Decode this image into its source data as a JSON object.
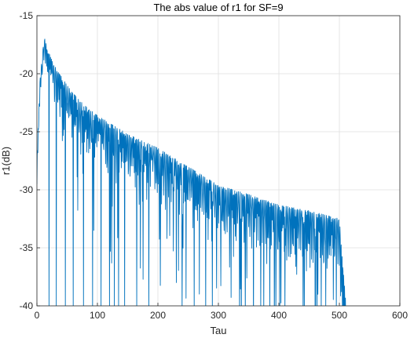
{
  "chart_data": {
    "type": "line",
    "title": "The abs value of r1 for SF=9",
    "xlabel": "Tau",
    "ylabel": "r1(dB)",
    "xlim": [
      0,
      600
    ],
    "ylim": [
      -40,
      -15
    ],
    "xticks": [
      0,
      100,
      200,
      300,
      400,
      500,
      600
    ],
    "yticks": [
      -15,
      -20,
      -25,
      -30,
      -35,
      -40
    ],
    "grid": true,
    "line_color": "#0072BD",
    "series": [
      {
        "name": "",
        "x_range": [
          0,
          511
        ],
        "envelope_points": [
          {
            "x": 0,
            "y": -27.5
          },
          {
            "x": 5,
            "y": -20.5
          },
          {
            "x": 12,
            "y": -16.8
          },
          {
            "x": 18,
            "y": -18.0
          },
          {
            "x": 30,
            "y": -19.4
          },
          {
            "x": 50,
            "y": -21.0
          },
          {
            "x": 70,
            "y": -22.3
          },
          {
            "x": 100,
            "y": -23.6
          },
          {
            "x": 150,
            "y": -25.2
          },
          {
            "x": 200,
            "y": -26.4
          },
          {
            "x": 250,
            "y": -28.0
          },
          {
            "x": 300,
            "y": -29.6
          },
          {
            "x": 350,
            "y": -30.4
          },
          {
            "x": 400,
            "y": -31.3
          },
          {
            "x": 450,
            "y": -31.8
          },
          {
            "x": 500,
            "y": -32.5
          },
          {
            "x": 511,
            "y": -40.0
          }
        ],
        "deep_nulls": [
          20,
          32,
          47,
          60,
          77,
          92,
          106,
          120,
          128,
          135,
          145,
          165,
          185,
          240,
          260,
          290,
          375,
          385,
          395,
          410,
          440,
          470,
          495
        ]
      }
    ]
  }
}
